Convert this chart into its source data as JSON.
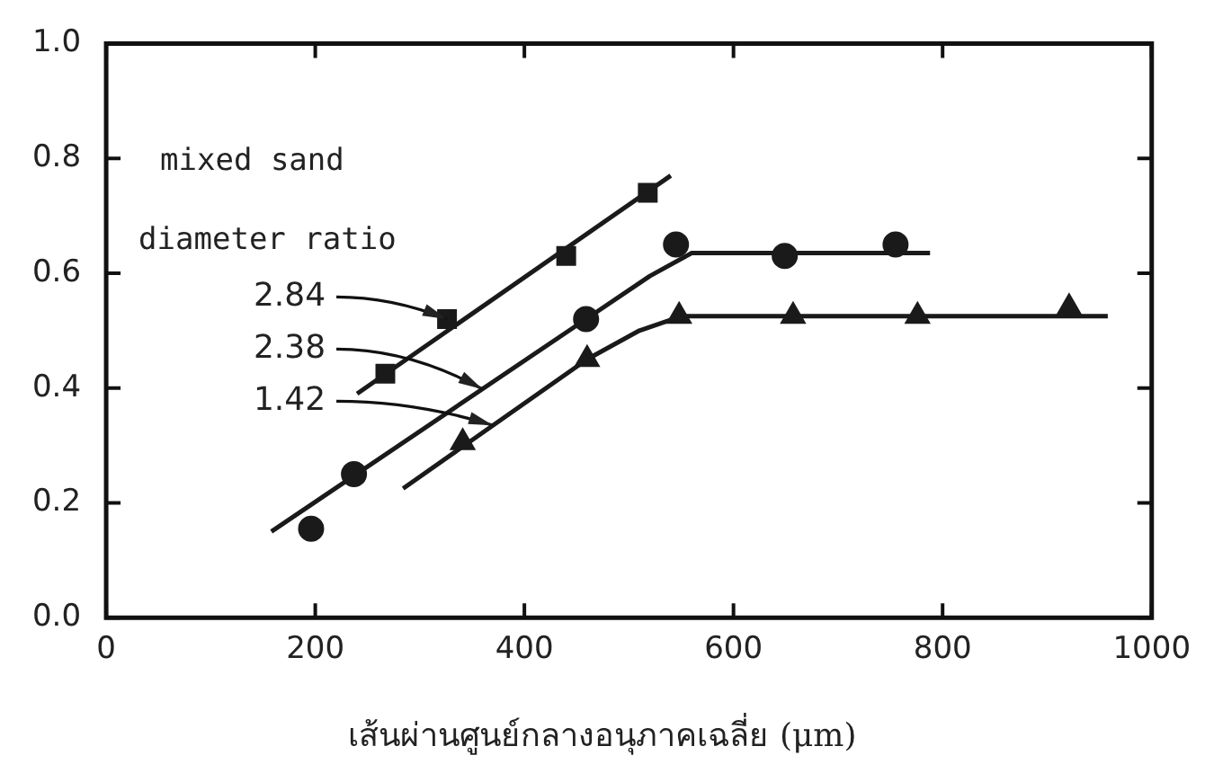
{
  "chart_data": {
    "type": "scatter",
    "xlabel": "เส้นผ่านศูนย์กลางอนุภาคเฉลี่ย (μm)",
    "xlim": [
      0,
      1000
    ],
    "xticks": [
      0,
      200,
      400,
      600,
      800,
      1000
    ],
    "ylim": [
      0,
      1
    ],
    "yticks": [
      {
        "value": 0,
        "label": "0.0"
      },
      0.2,
      0.4,
      0.6,
      0.8,
      {
        "value": 1,
        "label": "1.0"
      }
    ],
    "grid": false,
    "legend": false,
    "series": [
      {
        "type": "scatter",
        "marker": "square",
        "color": "#1a1a1a",
        "x": [
          267,
          326,
          440,
          518
        ],
        "values": [
          0.425,
          0.52,
          0.63,
          0.74
        ]
      },
      {
        "type": "scatter",
        "marker": "circle",
        "color": "#1a1a1a",
        "x": [
          196,
          237,
          459,
          545,
          649,
          755
        ],
        "values": [
          0.155,
          0.25,
          0.52,
          0.65,
          0.63,
          0.65
        ]
      },
      {
        "type": "scatter",
        "marker": "triangle",
        "color": "#1a1a1a",
        "x": [
          341,
          460,
          548,
          657,
          776,
          921
        ],
        "values": [
          0.305,
          0.45,
          0.525,
          0.525,
          0.525,
          0.54
        ]
      },
      {
        "type": "line",
        "marker": "none",
        "color": "#1a1a1a",
        "x": [
          240,
          540
        ],
        "values": [
          0.39,
          0.77
        ]
      },
      {
        "type": "line",
        "marker": "none",
        "color": "#1a1a1a",
        "x": [
          158,
          459,
          520,
          560,
          788
        ],
        "values": [
          0.15,
          0.52,
          0.595,
          0.635,
          0.635
        ]
      },
      {
        "type": "line",
        "marker": "none",
        "color": "#1a1a1a",
        "x": [
          284,
          460,
          510,
          550,
          958
        ],
        "values": [
          0.225,
          0.45,
          0.5,
          0.525,
          0.525
        ]
      }
    ],
    "annotations": [
      "mixed sand",
      "diameter ratio",
      {
        "text": "2.84",
        "x": 326,
        "y": 0.52
      },
      {
        "text": "2.38",
        "x": 360,
        "y": 0.398
      },
      {
        "text": "1.42",
        "x": 370,
        "y": 0.335
      }
    ]
  }
}
